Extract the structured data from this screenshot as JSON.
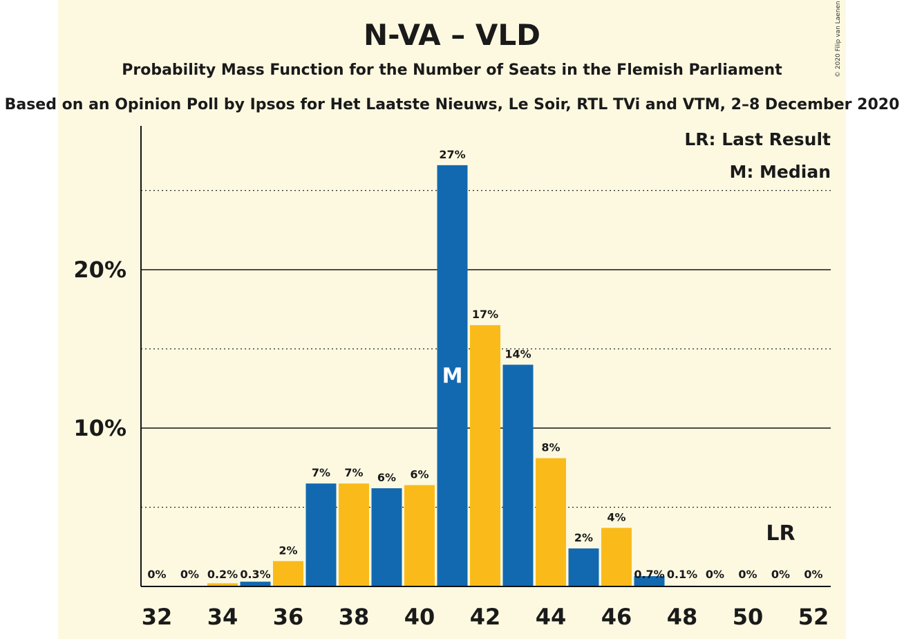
{
  "title": "N-VA – VLD",
  "subtitle": "Probability Mass Function for the Number of Seats in the Flemish Parliament",
  "subsubtitle": "Based on an Opinion Poll by Ipsos for Het Laatste Nieuws, Le Soir, RTL TVi and VTM, 2–8 December 2020",
  "copyright": "© 2020 Filip van Laenen",
  "legend": {
    "last_result": "LR: Last Result",
    "median": "M: Median"
  },
  "colors": {
    "blue": "#1269b0",
    "yellow": "#fabb1a",
    "background": "#fdf9e1"
  },
  "chart_data": {
    "type": "bar",
    "xlabel": "",
    "ylabel": "",
    "x": [
      32,
      33,
      34,
      35,
      36,
      37,
      38,
      39,
      40,
      41,
      42,
      43,
      44,
      45,
      46,
      47,
      48,
      49,
      50,
      51,
      52
    ],
    "values": [
      0,
      0,
      0.2,
      0.3,
      1.6,
      6.5,
      6.5,
      6.2,
      6.4,
      26.6,
      16.5,
      14.0,
      8.1,
      2.4,
      3.7,
      0.65,
      0.05,
      0,
      0,
      0,
      0
    ],
    "labels": [
      "0%",
      "0%",
      "0.2%",
      "0.3%",
      "2%",
      "7%",
      "7%",
      "6%",
      "6%",
      "27%",
      "17%",
      "14%",
      "8%",
      "2%",
      "4%",
      "0.7%",
      "0.1%",
      "0%",
      "0%",
      "0%",
      "0%"
    ],
    "xticks": [
      "32",
      "34",
      "36",
      "38",
      "40",
      "42",
      "44",
      "46",
      "48",
      "50",
      "52"
    ],
    "yticks": [
      "10%",
      "20%"
    ],
    "ylim": [
      0,
      28
    ],
    "median_seat": 41,
    "median_label": "M",
    "last_result_seat": 51,
    "last_result_label": "LR",
    "grid": {
      "solid": [
        10,
        20
      ],
      "dotted": [
        5,
        15,
        25
      ]
    }
  }
}
